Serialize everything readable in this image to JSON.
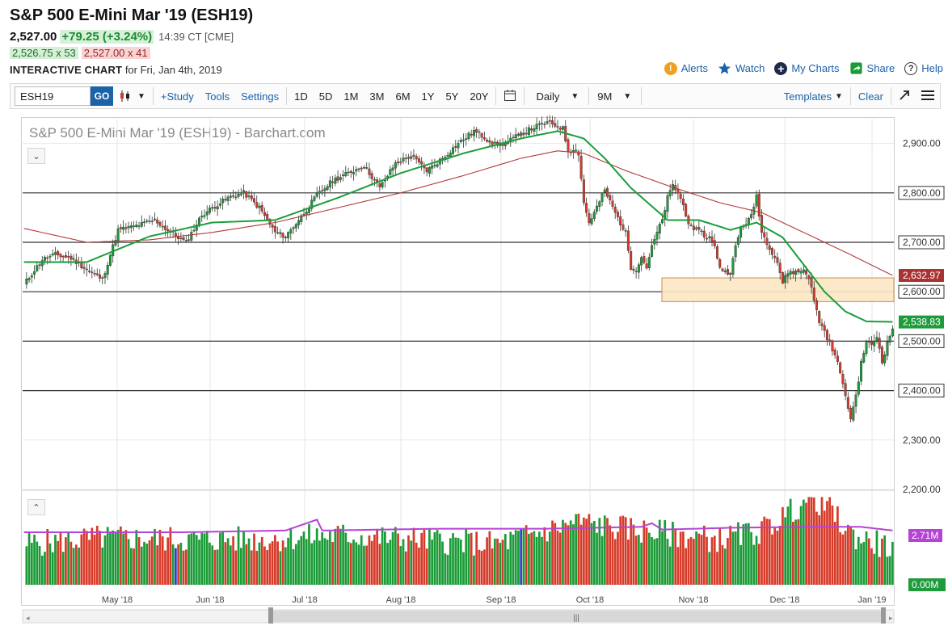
{
  "header": {
    "title": "S&P 500 E-Mini Mar '19 (ESH19)",
    "last_price": "2,527.00",
    "change": "+79.25 (+3.24%)",
    "time": "14:39 CT [CME]",
    "bid": "2,526.75 x 53",
    "ask": "2,527.00 x 41",
    "chart_label": "INTERACTIVE CHART",
    "chart_date": "for Fri, Jan 4th, 2019"
  },
  "links": {
    "alerts": "Alerts",
    "watch": "Watch",
    "my_charts": "My Charts",
    "share": "Share",
    "help": "Help"
  },
  "toolbar": {
    "symbol": "ESH19",
    "go": "GO",
    "study": "+Study",
    "tools": "Tools",
    "settings": "Settings",
    "ranges": [
      "1D",
      "5D",
      "1M",
      "3M",
      "6M",
      "1Y",
      "5Y",
      "20Y"
    ],
    "interval": "Daily",
    "period": "9M",
    "templates": "Templates",
    "clear": "Clear"
  },
  "colors": {
    "up": "#1b9b37",
    "down": "#d63b2a",
    "ma_short": "#1a9e3a",
    "ma_long": "#b23a3a",
    "volume_avg": "#b543d4",
    "zone": "#fbe7c5",
    "zone_border": "#c99a55",
    "highlight_blue": "#2b3fd1",
    "link": "#1b62a8"
  },
  "chart_data": {
    "type": "candlestick",
    "title": "S&P 500 E-Mini Mar '19 (ESH19) - Barchart.com",
    "ylim": [
      2200,
      2950
    ],
    "y_ticks": [
      "2,900.00",
      "2,800.00",
      "2,700.00",
      "2,600.00",
      "2,500.00",
      "2,400.00",
      "2,300.00",
      "2,200.00"
    ],
    "y_tick_values": [
      2900,
      2800,
      2700,
      2600,
      2500,
      2400,
      2300,
      2200
    ],
    "x_labels": [
      "May '18",
      "Jun '18",
      "Jul '18",
      "Aug '18",
      "Sep '18",
      "Oct '18",
      "Nov '18",
      "Dec '18",
      "Jan '19"
    ],
    "horizontal_lines": [
      2800,
      2700,
      2600,
      2500,
      2400
    ],
    "zone": [
      2580,
      2628
    ],
    "price_labels": {
      "ma_long": "2,632.97",
      "ma_short": "2,538.83"
    },
    "price_label_values": {
      "ma_long": 2632.97,
      "ma_short": 2538.83
    },
    "anchors_close": [
      [
        0,
        2615
      ],
      [
        7,
        2665
      ],
      [
        12,
        2675
      ],
      [
        18,
        2668
      ],
      [
        24,
        2645
      ],
      [
        30,
        2625
      ],
      [
        36,
        2725
      ],
      [
        42,
        2732
      ],
      [
        50,
        2745
      ],
      [
        56,
        2720
      ],
      [
        62,
        2700
      ],
      [
        68,
        2755
      ],
      [
        72,
        2770
      ],
      [
        78,
        2790
      ],
      [
        84,
        2800
      ],
      [
        90,
        2770
      ],
      [
        96,
        2720
      ],
      [
        100,
        2712
      ],
      [
        106,
        2752
      ],
      [
        112,
        2795
      ],
      [
        118,
        2825
      ],
      [
        124,
        2840
      ],
      [
        130,
        2855
      ],
      [
        136,
        2810
      ],
      [
        142,
        2860
      ],
      [
        148,
        2875
      ],
      [
        154,
        2845
      ],
      [
        160,
        2870
      ],
      [
        166,
        2900
      ],
      [
        172,
        2925
      ],
      [
        176,
        2912
      ],
      [
        180,
        2898
      ],
      [
        184,
        2900
      ],
      [
        190,
        2920
      ],
      [
        196,
        2935
      ],
      [
        200,
        2942
      ],
      [
        204,
        2935
      ],
      [
        206,
        2930
      ],
      [
        208,
        2885
      ],
      [
        210,
        2890
      ],
      [
        212,
        2880
      ],
      [
        214,
        2780
      ],
      [
        216,
        2740
      ],
      [
        218,
        2760
      ],
      [
        222,
        2805
      ],
      [
        226,
        2760
      ],
      [
        230,
        2718
      ],
      [
        232,
        2650
      ],
      [
        234,
        2645
      ],
      [
        236,
        2670
      ],
      [
        238,
        2650
      ],
      [
        240,
        2690
      ],
      [
        242,
        2720
      ],
      [
        244,
        2745
      ],
      [
        246,
        2790
      ],
      [
        248,
        2815
      ],
      [
        250,
        2800
      ],
      [
        252,
        2775
      ],
      [
        254,
        2740
      ],
      [
        256,
        2720
      ],
      [
        258,
        2730
      ],
      [
        260,
        2712
      ],
      [
        262,
        2710
      ],
      [
        264,
        2690
      ],
      [
        266,
        2650
      ],
      [
        268,
        2640
      ],
      [
        270,
        2640
      ],
      [
        272,
        2690
      ],
      [
        274,
        2730
      ],
      [
        276,
        2740
      ],
      [
        278,
        2752
      ],
      [
        280,
        2795
      ],
      [
        282,
        2720
      ],
      [
        284,
        2700
      ],
      [
        286,
        2680
      ],
      [
        288,
        2660
      ],
      [
        290,
        2618
      ],
      [
        292,
        2640
      ],
      [
        294,
        2640
      ],
      [
        296,
        2640
      ],
      [
        298,
        2645
      ],
      [
        300,
        2630
      ],
      [
        302,
        2582
      ],
      [
        304,
        2540
      ],
      [
        306,
        2520
      ],
      [
        308,
        2495
      ],
      [
        310,
        2470
      ],
      [
        312,
        2440
      ],
      [
        314,
        2385
      ],
      [
        316,
        2345
      ],
      [
        318,
        2390
      ],
      [
        320,
        2455
      ],
      [
        322,
        2500
      ],
      [
        324,
        2490
      ],
      [
        326,
        2510
      ],
      [
        328,
        2460
      ],
      [
        330,
        2495
      ],
      [
        332,
        2527
      ]
    ],
    "ma_short_anchors": [
      [
        0,
        2660
      ],
      [
        24,
        2660
      ],
      [
        48,
        2712
      ],
      [
        72,
        2740
      ],
      [
        96,
        2745
      ],
      [
        120,
        2790
      ],
      [
        144,
        2840
      ],
      [
        168,
        2880
      ],
      [
        190,
        2910
      ],
      [
        204,
        2925
      ],
      [
        214,
        2910
      ],
      [
        222,
        2870
      ],
      [
        232,
        2810
      ],
      [
        246,
        2745
      ],
      [
        258,
        2745
      ],
      [
        270,
        2725
      ],
      [
        280,
        2740
      ],
      [
        290,
        2710
      ],
      [
        298,
        2655
      ],
      [
        306,
        2600
      ],
      [
        314,
        2560
      ],
      [
        322,
        2540
      ],
      [
        332,
        2539
      ]
    ],
    "ma_long_anchors": [
      [
        0,
        2728
      ],
      [
        24,
        2700
      ],
      [
        48,
        2705
      ],
      [
        72,
        2720
      ],
      [
        96,
        2740
      ],
      [
        120,
        2770
      ],
      [
        144,
        2800
      ],
      [
        168,
        2835
      ],
      [
        190,
        2870
      ],
      [
        204,
        2885
      ],
      [
        214,
        2880
      ],
      [
        230,
        2845
      ],
      [
        246,
        2815
      ],
      [
        266,
        2780
      ],
      [
        282,
        2760
      ],
      [
        298,
        2720
      ],
      [
        314,
        2680
      ],
      [
        332,
        2633
      ]
    ],
    "volume_label": "2.71M",
    "volume_zero_label": "0.00M",
    "volume_anchors": [
      [
        0,
        0.45
      ],
      [
        30,
        0.52
      ],
      [
        60,
        0.5
      ],
      [
        90,
        0.5
      ],
      [
        120,
        0.55
      ],
      [
        150,
        0.5
      ],
      [
        180,
        0.45
      ],
      [
        200,
        0.6
      ],
      [
        212,
        0.7
      ],
      [
        222,
        0.65
      ],
      [
        236,
        0.6
      ],
      [
        250,
        0.55
      ],
      [
        266,
        0.5
      ],
      [
        282,
        0.6
      ],
      [
        290,
        0.75
      ],
      [
        300,
        0.95
      ],
      [
        306,
        0.9
      ],
      [
        316,
        0.55
      ],
      [
        332,
        0.4
      ]
    ],
    "volume_avg_anchors": [
      [
        0,
        0.58
      ],
      [
        60,
        0.58
      ],
      [
        100,
        0.6
      ],
      [
        112,
        0.72
      ],
      [
        114,
        0.6
      ],
      [
        160,
        0.62
      ],
      [
        200,
        0.62
      ],
      [
        236,
        0.64
      ],
      [
        240,
        0.68
      ],
      [
        244,
        0.61
      ],
      [
        270,
        0.63
      ],
      [
        300,
        0.64
      ],
      [
        320,
        0.64
      ],
      [
        332,
        0.6
      ]
    ]
  }
}
